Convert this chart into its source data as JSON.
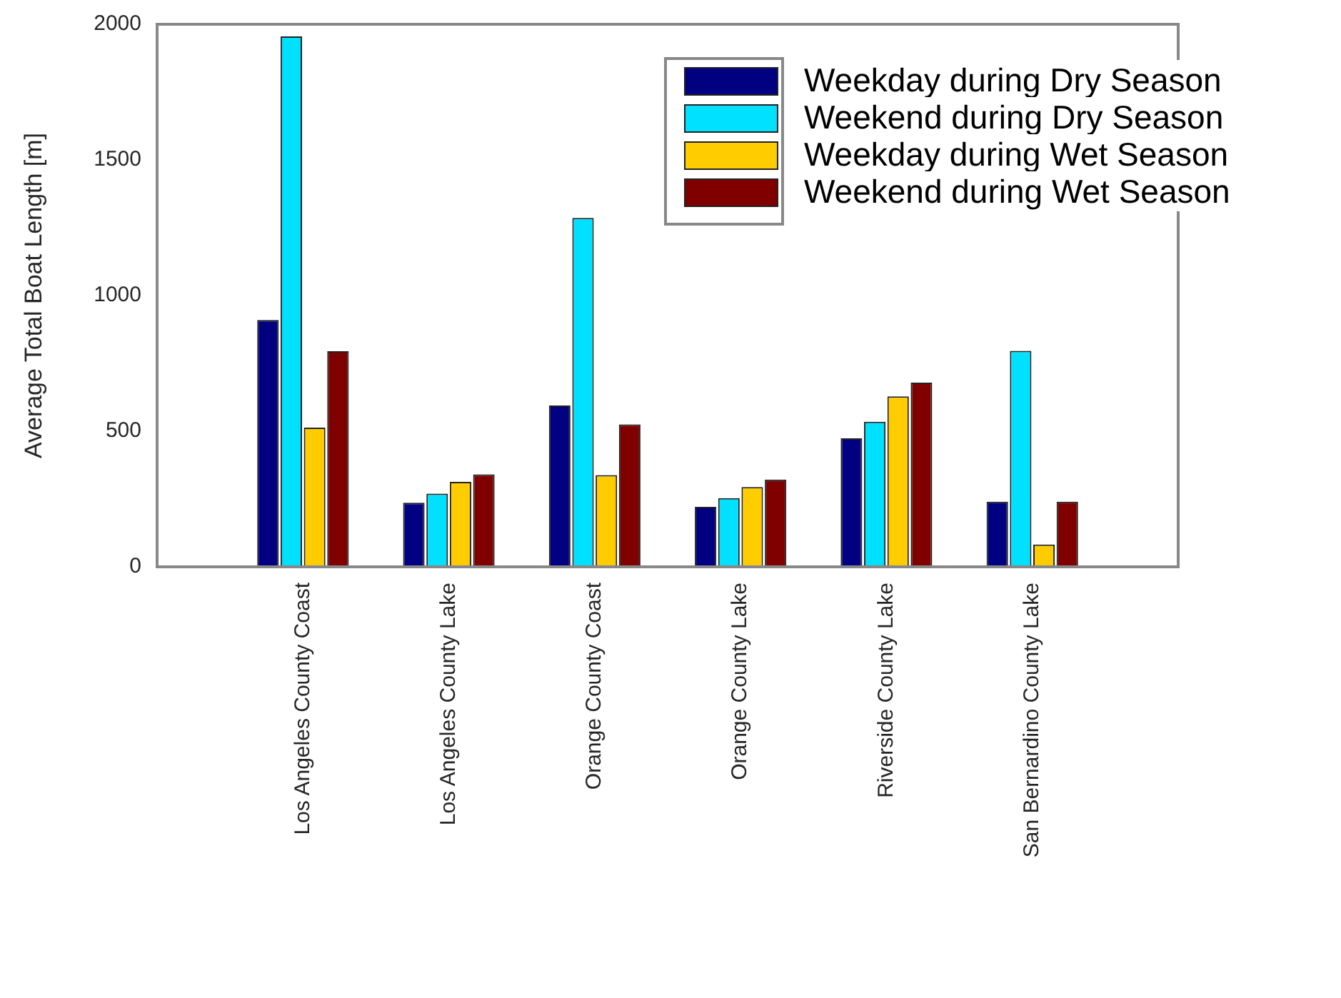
{
  "chart_data": {
    "type": "bar",
    "ylabel": "Average Total Boat Length [m]",
    "categories": [
      "Los Angeles County Coast",
      "Los Angeles County Lake",
      "Orange County Coast",
      "Orange County Lake",
      "Riverside County Lake",
      "San Bernardino County Lake"
    ],
    "series": [
      {
        "name": "Weekday during Dry Season",
        "color": "#000080",
        "values": [
          910,
          236,
          595,
          221,
          474,
          240
        ]
      },
      {
        "name": "Weekend during Dry Season",
        "color": "#00e0ff",
        "values": [
          1955,
          270,
          1286,
          253,
          535,
          796
        ]
      },
      {
        "name": "Weekday during Wet Season",
        "color": "#ffcc00",
        "values": [
          513,
          313,
          338,
          294,
          628,
          82
        ]
      },
      {
        "name": "Weekend during Wet Season",
        "color": "#800000",
        "values": [
          795,
          341,
          525,
          322,
          679,
          240
        ]
      }
    ],
    "ylim": [
      0,
      2000
    ],
    "yticks": [
      0,
      500,
      1000,
      1500,
      2000
    ],
    "grid": false,
    "legend": "top right"
  }
}
